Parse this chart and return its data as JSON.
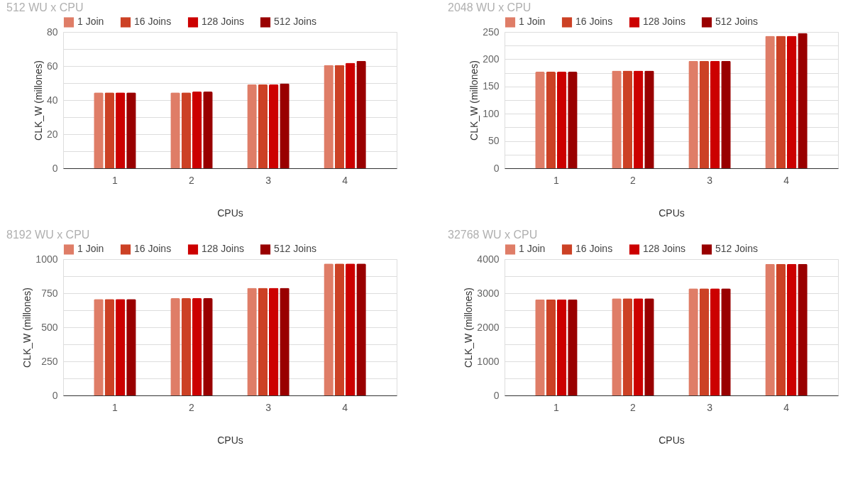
{
  "chart_data": [
    {
      "type": "bar",
      "title": "512 WU x CPU",
      "xlabel": "CPUs",
      "ylabel": "CLK_W (millones)",
      "categories": [
        "1",
        "2",
        "3",
        "4"
      ],
      "ylim": [
        0,
        80
      ],
      "yticks": [
        0,
        {
          "value": 10,
          "label": null
        },
        20,
        {
          "value": 30,
          "label": null
        },
        40,
        {
          "value": 50,
          "label": null
        },
        60,
        {
          "value": 70,
          "label": null
        },
        80
      ],
      "grid": "y",
      "legend": "top",
      "series": [
        {
          "name": "1 Join",
          "color": "#df7d67",
          "values": [
            44.5,
            44.5,
            49.2,
            60.6
          ]
        },
        {
          "name": "16 Joins",
          "color": "#cc4125",
          "values": [
            44.5,
            44.5,
            49.2,
            60.6
          ]
        },
        {
          "name": "128 Joins",
          "color": "#cc0000",
          "values": [
            44.5,
            45,
            49.2,
            61.9
          ]
        },
        {
          "name": "512 Joins",
          "color": "#990000",
          "values": [
            44.5,
            45,
            49.8,
            63
          ]
        }
      ]
    },
    {
      "type": "bar",
      "title": "2048 WU x CPU",
      "xlabel": "CPUs",
      "ylabel": "CLK_W (millones)",
      "categories": [
        "1",
        "2",
        "3",
        "4"
      ],
      "ylim": [
        0,
        250
      ],
      "yticks": [
        0,
        {
          "value": 25,
          "label": null
        },
        50,
        {
          "value": 75,
          "label": null
        },
        100,
        {
          "value": 125,
          "label": null
        },
        150,
        {
          "value": 175,
          "label": null
        },
        200,
        {
          "value": 225,
          "label": null
        },
        250
      ],
      "grid": "y",
      "legend": "top",
      "series": [
        {
          "name": "1 Join",
          "color": "#df7d67",
          "values": [
            177,
            179,
            197,
            243
          ]
        },
        {
          "name": "16 Joins",
          "color": "#cc4125",
          "values": [
            177,
            179,
            197,
            243
          ]
        },
        {
          "name": "128 Joins",
          "color": "#cc0000",
          "values": [
            177,
            179,
            197,
            243
          ]
        },
        {
          "name": "512 Joins",
          "color": "#990000",
          "values": [
            177,
            179,
            197,
            248
          ]
        }
      ]
    },
    {
      "type": "bar",
      "title": "8192 WU x CPU",
      "xlabel": "CPUs",
      "ylabel": "CLK_W (millones)",
      "categories": [
        "1",
        "2",
        "3",
        "4"
      ],
      "ylim": [
        0,
        1000
      ],
      "yticks": [
        0,
        {
          "value": 125,
          "label": null
        },
        250,
        {
          "value": 375,
          "label": null
        },
        500,
        {
          "value": 625,
          "label": null
        },
        750,
        {
          "value": 875,
          "label": null
        },
        1000
      ],
      "grid": "y",
      "legend": "top",
      "series": [
        {
          "name": "1 Join",
          "color": "#df7d67",
          "values": [
            707,
            713,
            789,
            967
          ]
        },
        {
          "name": "16 Joins",
          "color": "#cc4125",
          "values": [
            707,
            713,
            789,
            967
          ]
        },
        {
          "name": "128 Joins",
          "color": "#cc0000",
          "values": [
            707,
            713,
            789,
            967
          ]
        },
        {
          "name": "512 Joins",
          "color": "#990000",
          "values": [
            707,
            713,
            789,
            967
          ]
        }
      ]
    },
    {
      "type": "bar",
      "title": "32768 WU x CPU",
      "xlabel": "CPUs",
      "ylabel": "CLK_W (millones)",
      "categories": [
        "1",
        "2",
        "3",
        "4"
      ],
      "ylim": [
        0,
        4000
      ],
      "yticks": [
        0,
        {
          "value": 500,
          "label": null
        },
        1000,
        {
          "value": 1500,
          "label": null
        },
        2000,
        {
          "value": 2500,
          "label": null
        },
        3000,
        {
          "value": 3500,
          "label": null
        },
        4000
      ],
      "grid": "y",
      "legend": "top",
      "series": [
        {
          "name": "1 Join",
          "color": "#df7d67",
          "values": [
            2820,
            2850,
            3140,
            3860
          ]
        },
        {
          "name": "16 Joins",
          "color": "#cc4125",
          "values": [
            2820,
            2850,
            3140,
            3860
          ]
        },
        {
          "name": "128 Joins",
          "color": "#cc0000",
          "values": [
            2820,
            2850,
            3140,
            3860
          ]
        },
        {
          "name": "512 Joins",
          "color": "#990000",
          "values": [
            2820,
            2850,
            3140,
            3860
          ]
        }
      ]
    }
  ]
}
